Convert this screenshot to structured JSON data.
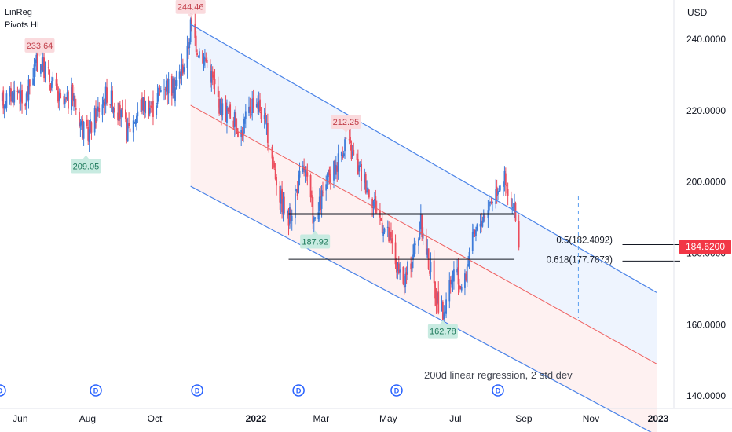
{
  "legend": {
    "indicator_1": "LinReg",
    "indicator_2": "Pivots HL"
  },
  "currency": "USD",
  "last_price": "184.6200",
  "annotation": "200d linear regression, 2 std dev",
  "colors": {
    "up": "#3d7bd9",
    "down": "#ec4c5c",
    "channel": "#4a83e8",
    "midline": "#ef5f5f",
    "upper_fill": "#eef4fe",
    "lower_fill": "#fef1f1",
    "high_pivot": "#fadadd",
    "low_pivot": "#c8ebe1",
    "price_tag": "#f23645",
    "dividend": "#2962ff"
  },
  "chart_data": {
    "type": "candlestick",
    "title": "",
    "y_axis": {
      "ticks": [
        140,
        160,
        180,
        200,
        220,
        240
      ],
      "tick_labels": [
        "140.0000",
        "160.0000",
        "180.0000",
        "200.0000",
        "220.0000",
        "240.0000"
      ],
      "range": [
        136.5,
        251
      ]
    },
    "x_axis": {
      "ticks": [
        {
          "label": "Jun",
          "bold": false
        },
        {
          "label": "Aug",
          "bold": false
        },
        {
          "label": "Oct",
          "bold": false
        },
        {
          "label": "2022",
          "bold": true
        },
        {
          "label": "Mar",
          "bold": false
        },
        {
          "label": "May",
          "bold": false
        },
        {
          "label": "Jul",
          "bold": false
        },
        {
          "label": "Sep",
          "bold": false
        },
        {
          "label": "Nov",
          "bold": false
        },
        {
          "label": "2023",
          "bold": true
        }
      ]
    },
    "price_path": [
      [
        "2021-05-15",
        222
      ],
      [
        "2021-06-01",
        226
      ],
      [
        "2021-06-05",
        220
      ],
      [
        "2021-06-15",
        232
      ],
      [
        "2021-06-20",
        234
      ],
      [
        "2021-07-01",
        228
      ],
      [
        "2021-07-10",
        221
      ],
      [
        "2021-07-20",
        224
      ],
      [
        "2021-08-01",
        212
      ],
      [
        "2021-08-10",
        219
      ],
      [
        "2021-08-20",
        225
      ],
      [
        "2021-09-01",
        219
      ],
      [
        "2021-09-08",
        214
      ],
      [
        "2021-09-20",
        222
      ],
      [
        "2021-10-01",
        221
      ],
      [
        "2021-10-10",
        228
      ],
      [
        "2021-10-20",
        226
      ],
      [
        "2021-11-01",
        236
      ],
      [
        "2021-11-04",
        244
      ],
      [
        "2021-11-10",
        238
      ],
      [
        "2021-11-20",
        233
      ],
      [
        "2021-12-01",
        221
      ],
      [
        "2021-12-10",
        219
      ],
      [
        "2021-12-20",
        214
      ],
      [
        "2022-01-01",
        224
      ],
      [
        "2022-01-07",
        220
      ],
      [
        "2022-01-15",
        210
      ],
      [
        "2022-01-25",
        195
      ],
      [
        "2022-02-01",
        189
      ],
      [
        "2022-02-10",
        200
      ],
      [
        "2022-02-15",
        204
      ],
      [
        "2022-02-25",
        188
      ],
      [
        "2022-03-05",
        198
      ],
      [
        "2022-03-15",
        204
      ],
      [
        "2022-03-25",
        212
      ],
      [
        "2022-04-05",
        204
      ],
      [
        "2022-04-15",
        198
      ],
      [
        "2022-04-25",
        190
      ],
      [
        "2022-05-05",
        183
      ],
      [
        "2022-05-15",
        170
      ],
      [
        "2022-05-22",
        177
      ],
      [
        "2022-06-01",
        188
      ],
      [
        "2022-06-10",
        175
      ],
      [
        "2022-06-15",
        168
      ],
      [
        "2022-06-21",
        163
      ],
      [
        "2022-07-01",
        174
      ],
      [
        "2022-07-10",
        170
      ],
      [
        "2022-07-15",
        181
      ],
      [
        "2022-07-25",
        189
      ],
      [
        "2022-08-05",
        196
      ],
      [
        "2022-08-15",
        202
      ],
      [
        "2022-08-20",
        194
      ],
      [
        "2022-08-25",
        191
      ],
      [
        "2022-08-29",
        184
      ]
    ],
    "pivots": [
      {
        "type": "high",
        "date": "2021-06-20",
        "value": 233.64,
        "label": "233.64"
      },
      {
        "type": "low",
        "date": "2021-08-01",
        "value": 209.05,
        "label": "209.05"
      },
      {
        "type": "high",
        "date": "2021-11-04",
        "value": 244.46,
        "label": "244.46"
      },
      {
        "type": "low",
        "date": "2022-02-25",
        "value": 187.92,
        "label": "187.92"
      },
      {
        "type": "high",
        "date": "2022-03-25",
        "value": 212.25,
        "label": "212.25"
      },
      {
        "type": "low",
        "date": "2022-06-21",
        "value": 162.78,
        "label": "162.78"
      }
    ],
    "regression_channel": {
      "start_date": "2021-11-04",
      "end_date": "2023-01-01",
      "mid_start": 221.5,
      "mid_end": 149,
      "upper_start": 244.2,
      "upper_end": 169,
      "lower_start": 198.8,
      "lower_end": 129
    },
    "horizontal_levels": [
      {
        "value": 191,
        "from": "2022-02-01",
        "to": "2022-08-25",
        "bold": true
      },
      {
        "value": 178.3,
        "from": "2022-02-01",
        "to": "2022-08-25",
        "bold": false
      },
      {
        "value": 182.4,
        "from": "2022-12-01",
        "to": "2023-01-01",
        "bold": false
      },
      {
        "value": 177.8,
        "from": "2022-12-01",
        "to": "2023-01-01",
        "bold": false
      }
    ],
    "fib_levels": [
      {
        "label": "0.5(182.4092)",
        "value": 182.4092
      },
      {
        "label": "0.618(177.7873)",
        "value": 177.7873
      }
    ],
    "dividend_markers": [
      "2021-05-15",
      "2021-08-10",
      "2021-11-10",
      "2022-02-10",
      "2022-05-10",
      "2022-08-10"
    ],
    "dividend_label": "D",
    "forecast_line_date": "2022-10-22"
  }
}
